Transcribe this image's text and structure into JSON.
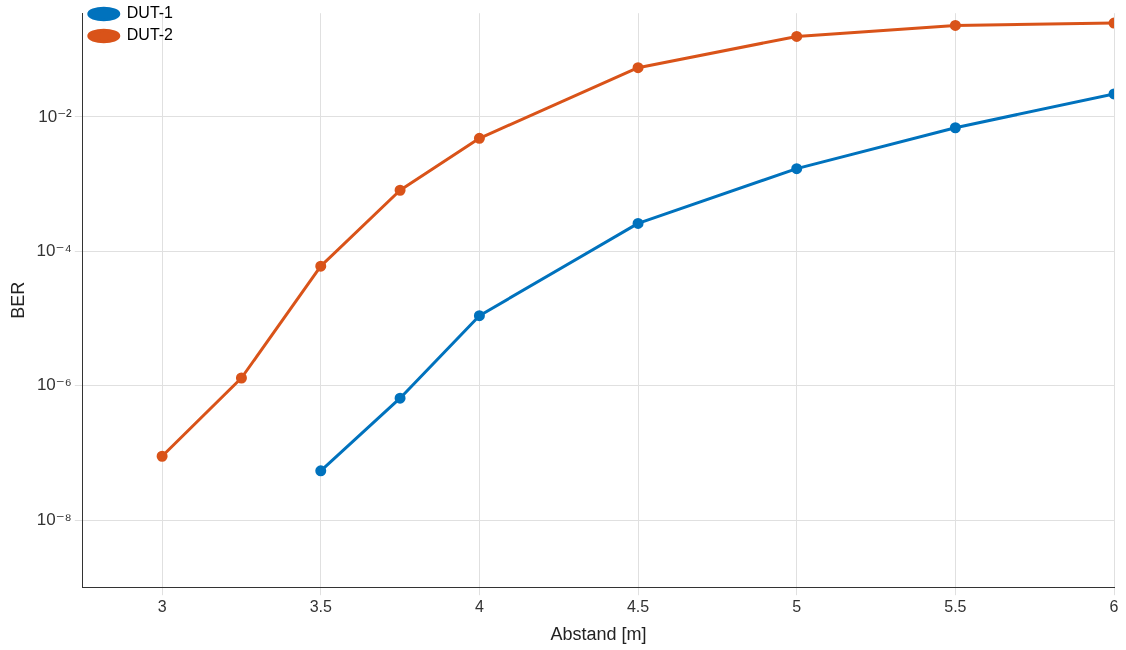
{
  "chart_data": {
    "type": "line",
    "xlabel": "Abstand [m]",
    "ylabel": "BER",
    "log": "y",
    "grid": true,
    "legend": "top left",
    "marker": "circle",
    "line_style": "solid",
    "xlim": [
      2.75,
      6
    ],
    "xticks": [
      3,
      3.5,
      4,
      4.5,
      5,
      5.5,
      6
    ],
    "ylim": [
      1e-09,
      0.35
    ],
    "yticks": [
      {
        "value": 1e-08,
        "label": "10⁻⁸"
      },
      {
        "value": 1e-06,
        "label": "10⁻⁶"
      },
      {
        "value": 0.0001,
        "label": "10⁻⁴"
      },
      {
        "value": 0.01,
        "label": "10⁻²"
      }
    ],
    "series": [
      {
        "name": "DUT-1",
        "color": "#0072bd",
        "x": [
          3.5,
          3.75,
          4,
          4.5,
          5,
          5.5,
          6
        ],
        "values": [
          5.4e-08,
          6.5e-07,
          1.1e-05,
          0.00026,
          0.0017,
          0.0069,
          0.022
        ]
      },
      {
        "name": "DUT-2",
        "color": "#d95319",
        "x": [
          3,
          3.25,
          3.5,
          3.75,
          4,
          4.5,
          5,
          5.5,
          6
        ],
        "values": [
          8.9e-08,
          1.3e-06,
          6e-05,
          0.00081,
          0.0048,
          0.054,
          0.158,
          0.23,
          0.25
        ]
      }
    ]
  }
}
